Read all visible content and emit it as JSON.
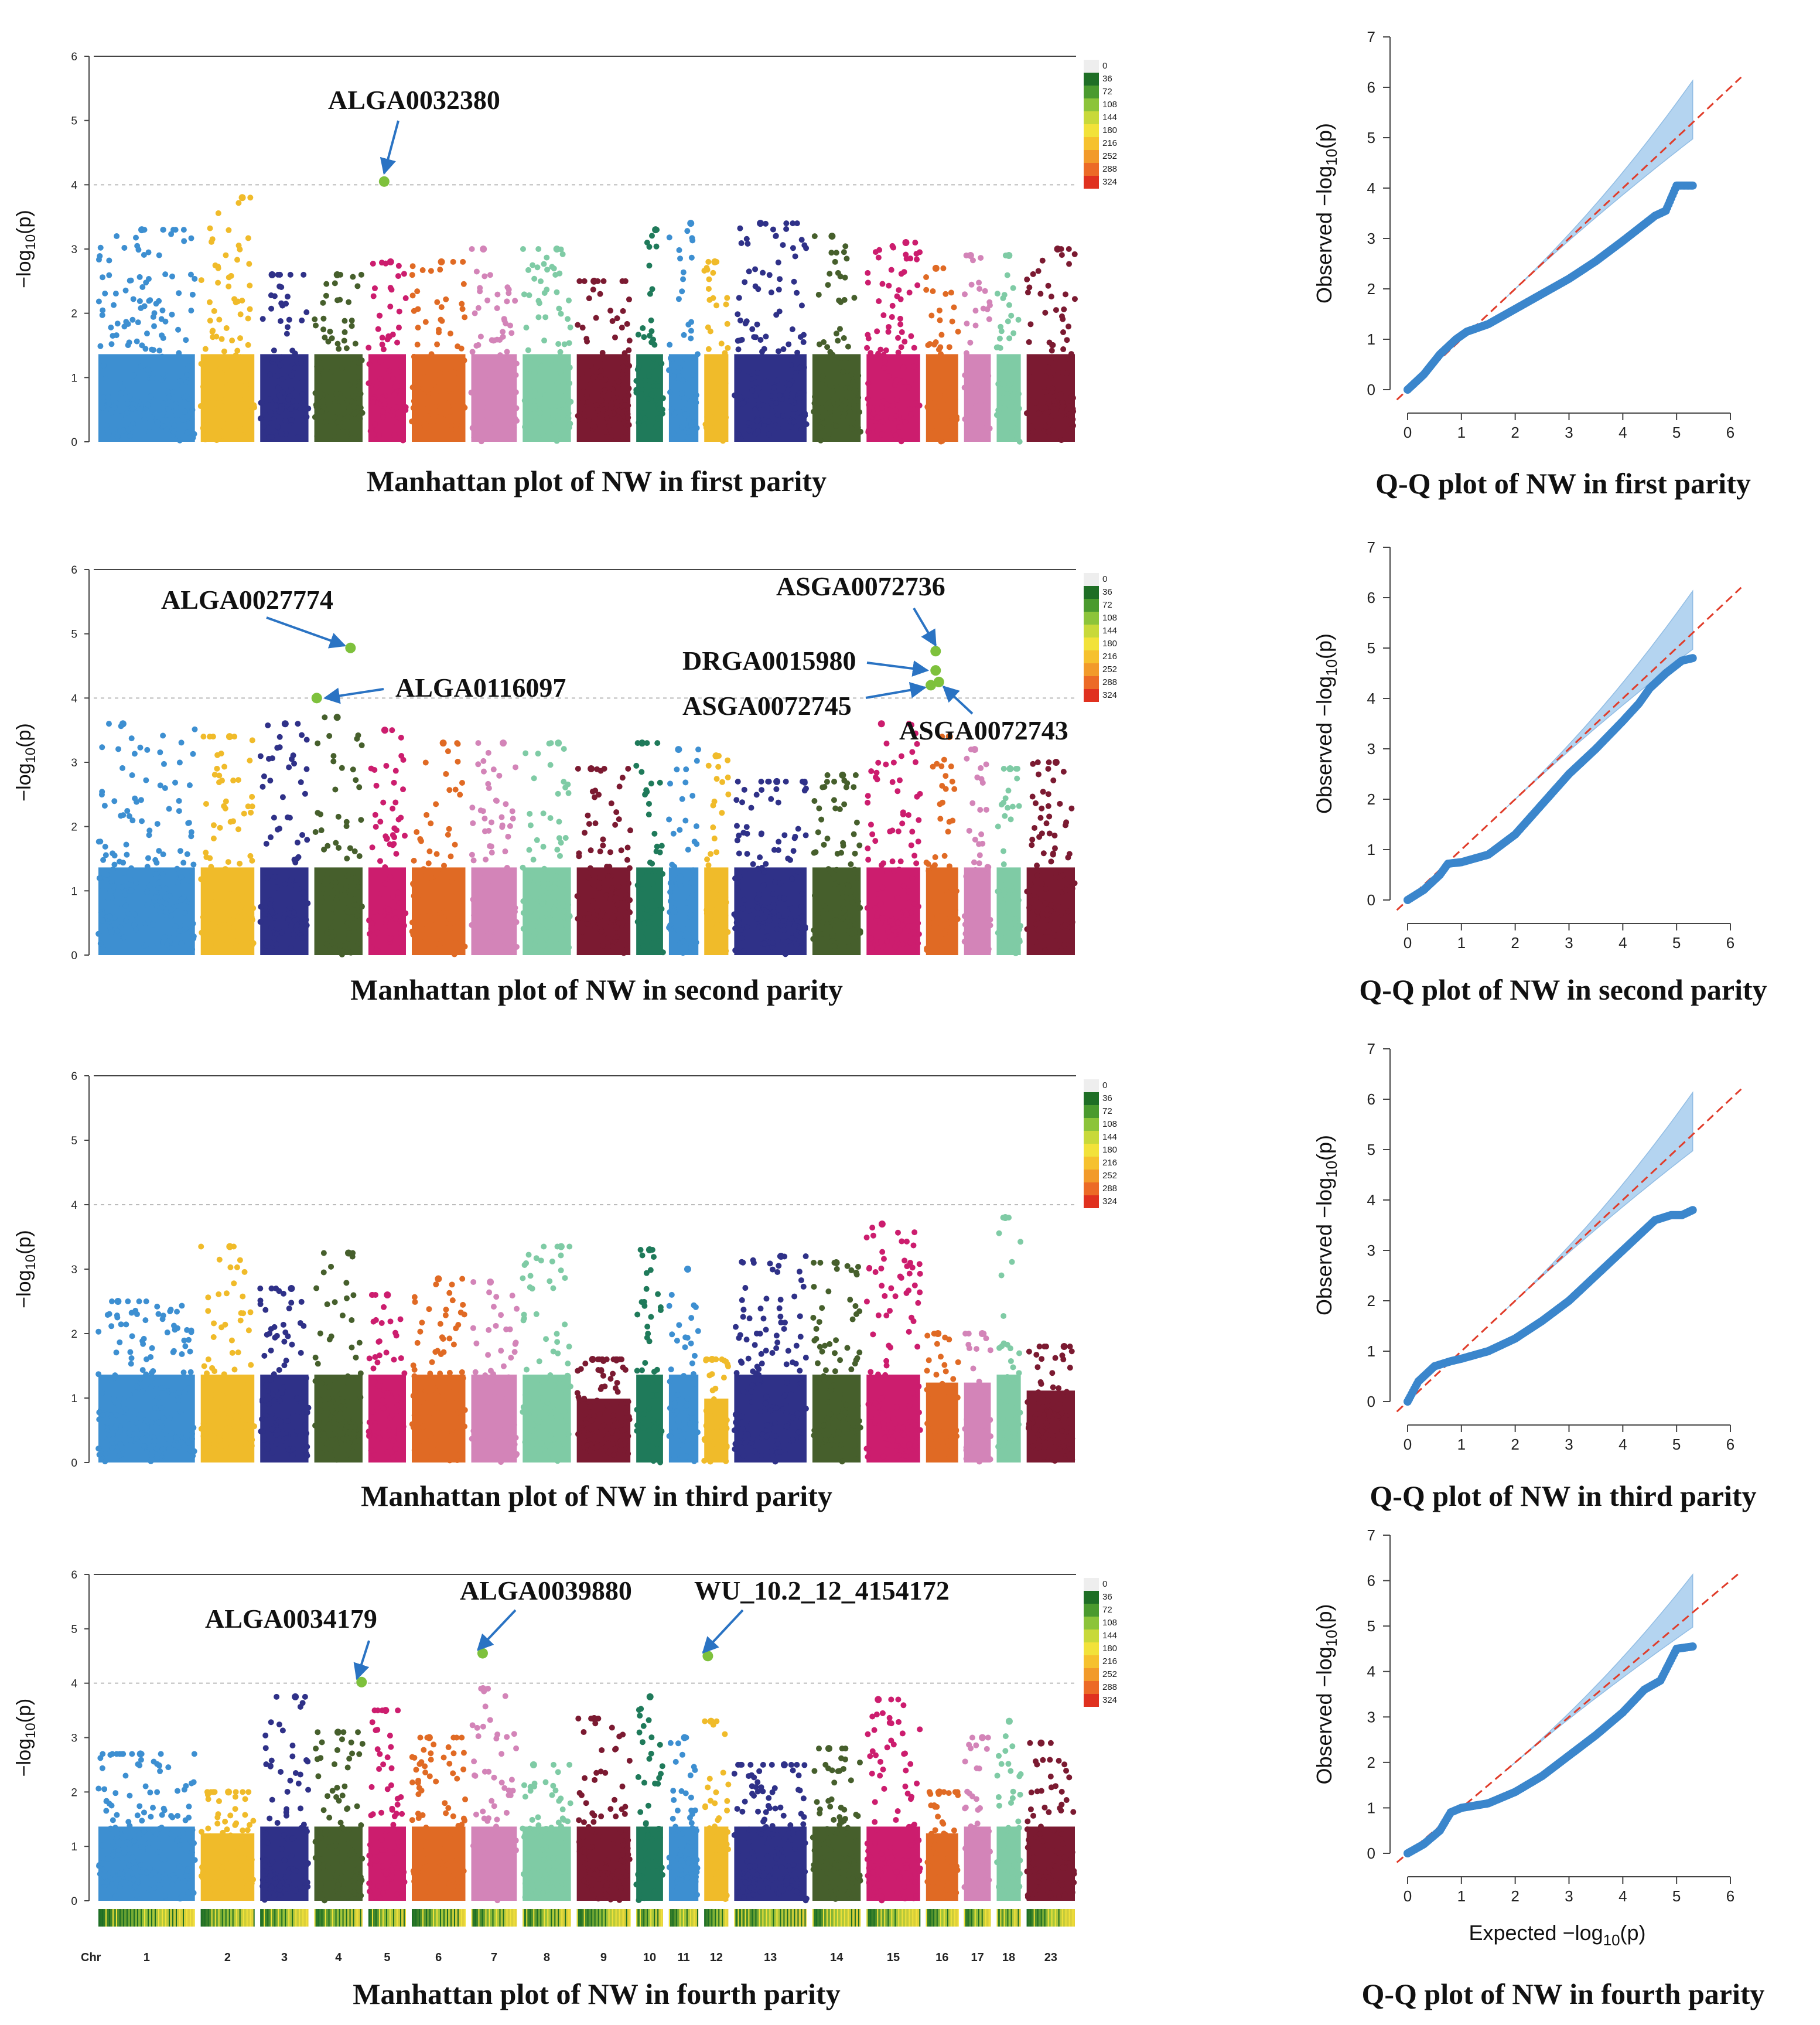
{
  "chart_data": [
    {
      "type": "scatter",
      "kind": "manhattan",
      "title": "Manhattan plot of NW in first parity",
      "ylabel": "-log10(p)",
      "ylim": [
        0,
        6
      ],
      "yticks": [
        0,
        1,
        2,
        3,
        4,
        5,
        6
      ],
      "threshold": 4,
      "chromosomes": [
        "1",
        "2",
        "3",
        "4",
        "5",
        "6",
        "7",
        "8",
        "9",
        "10",
        "11",
        "12",
        "13",
        "14",
        "15",
        "16",
        "17",
        "18",
        "23"
      ],
      "chromosome_widths": [
        3.6,
        2.0,
        1.8,
        1.8,
        1.4,
        2.0,
        1.7,
        1.8,
        2.0,
        1.0,
        1.1,
        0.9,
        2.7,
        1.8,
        2.0,
        1.2,
        1.0,
        0.9,
        1.8
      ],
      "chromosome_colors": [
        "#3d8fd1",
        "#f0bb2a",
        "#2f3188",
        "#465f2c",
        "#cc1d6e",
        "#e06a24",
        "#d384b8",
        "#7fcba5",
        "#7b1a31",
        "#1f7a5a",
        "#3d8fd1",
        "#f0bb2a",
        "#2f3188",
        "#465f2c",
        "#cc1d6e",
        "#e06a24",
        "#d384b8",
        "#7fcba5",
        "#7b1a31"
      ],
      "chromosome_max": [
        3.3,
        3.8,
        2.6,
        2.6,
        2.8,
        2.8,
        3.0,
        3.0,
        2.5,
        3.3,
        3.4,
        2.8,
        3.4,
        3.2,
        3.1,
        2.7,
        2.9,
        2.9,
        3.0
      ],
      "peaks": [
        {
          "snp": "ALGA0032380",
          "chr": "5",
          "pos": 0.42,
          "value": 4.05
        }
      ],
      "legend": {
        "title": "",
        "values": [
          "0",
          "36",
          "72",
          "108",
          "144",
          "180",
          "216",
          "252",
          "288",
          "324"
        ],
        "position": "right"
      }
    },
    {
      "type": "scatter",
      "kind": "manhattan",
      "title": "Manhattan plot of NW in second parity",
      "ylabel": "-log10(p)",
      "ylim": [
        0,
        6
      ],
      "yticks": [
        0,
        1,
        2,
        3,
        4,
        5,
        6
      ],
      "threshold": 4,
      "chromosomes": [
        "1",
        "2",
        "3",
        "4",
        "5",
        "6",
        "7",
        "8",
        "9",
        "10",
        "11",
        "12",
        "13",
        "14",
        "15",
        "16",
        "17",
        "18",
        "23"
      ],
      "chromosome_widths": [
        3.6,
        2.0,
        1.8,
        1.8,
        1.4,
        2.0,
        1.7,
        1.8,
        2.0,
        1.0,
        1.1,
        0.9,
        2.7,
        1.8,
        2.0,
        1.2,
        1.0,
        0.9,
        1.8
      ],
      "chromosome_colors": [
        "#3d8fd1",
        "#f0bb2a",
        "#2f3188",
        "#465f2c",
        "#cc1d6e",
        "#e06a24",
        "#d384b8",
        "#7fcba5",
        "#7b1a31",
        "#1f7a5a",
        "#3d8fd1",
        "#f0bb2a",
        "#2f3188",
        "#465f2c",
        "#cc1d6e",
        "#e06a24",
        "#d384b8",
        "#7fcba5",
        "#7b1a31"
      ],
      "chromosome_max": [
        3.6,
        3.4,
        3.6,
        3.7,
        3.5,
        3.3,
        3.3,
        3.3,
        2.9,
        3.3,
        3.2,
        3.1,
        2.7,
        2.8,
        3.6,
        3.4,
        3.2,
        2.9,
        3.0
      ],
      "peaks": [
        {
          "snp": "ALGA0027774",
          "chr": "4",
          "pos": 0.75,
          "value": 4.78
        },
        {
          "snp": "ALGA0116097",
          "chr": "4",
          "pos": 0.05,
          "value": 4.0
        },
        {
          "snp": "ASGA0072736",
          "chr": "16",
          "pos": 0.3,
          "value": 4.73
        },
        {
          "snp": "DRGA0015980",
          "chr": "16",
          "pos": 0.3,
          "value": 4.43
        },
        {
          "snp": "ASGA0072745",
          "chr": "16",
          "pos": 0.15,
          "value": 4.2
        },
        {
          "snp": "ASGA0072743",
          "chr": "16",
          "pos": 0.4,
          "value": 4.25
        }
      ],
      "legend": {
        "title": "",
        "values": [
          "0",
          "36",
          "72",
          "108",
          "144",
          "180",
          "216",
          "252",
          "288",
          "324"
        ],
        "position": "right"
      }
    },
    {
      "type": "scatter",
      "kind": "manhattan",
      "title": "Manhattan plot of NW in third parity",
      "ylabel": "-log10(p)",
      "ylim": [
        0,
        6
      ],
      "yticks": [
        0,
        1,
        2,
        3,
        4,
        5,
        6
      ],
      "threshold": 4,
      "chromosomes": [
        "1",
        "2",
        "3",
        "4",
        "5",
        "6",
        "7",
        "8",
        "9",
        "10",
        "11",
        "12",
        "13",
        "14",
        "15",
        "16",
        "17",
        "18",
        "23"
      ],
      "chromosome_widths": [
        3.6,
        2.0,
        1.8,
        1.8,
        1.4,
        2.0,
        1.7,
        1.8,
        2.0,
        1.0,
        1.1,
        0.9,
        2.7,
        1.8,
        2.0,
        1.2,
        1.0,
        0.9,
        1.8
      ],
      "chromosome_colors": [
        "#3d8fd1",
        "#f0bb2a",
        "#2f3188",
        "#465f2c",
        "#cc1d6e",
        "#e06a24",
        "#d384b8",
        "#7fcba5",
        "#7b1a31",
        "#1f7a5a",
        "#3d8fd1",
        "#f0bb2a",
        "#2f3188",
        "#465f2c",
        "#cc1d6e",
        "#e06a24",
        "#d384b8",
        "#7fcba5",
        "#7b1a31"
      ],
      "chromosome_max": [
        2.5,
        3.35,
        2.7,
        3.25,
        2.6,
        2.85,
        2.8,
        3.35,
        1.6,
        3.3,
        3.0,
        1.6,
        3.2,
        3.1,
        3.7,
        2.0,
        2.0,
        3.8,
        1.8
      ],
      "peaks": [],
      "legend": {
        "title": "",
        "values": [
          "0",
          "36",
          "72",
          "108",
          "144",
          "180",
          "216",
          "252",
          "288",
          "324"
        ],
        "position": "right"
      }
    },
    {
      "type": "scatter",
      "kind": "manhattan",
      "title": "Manhattan plot of NW in fourth parity",
      "xlabel": "Chr",
      "ylabel": "-log10(p)",
      "ylim": [
        0,
        6
      ],
      "yticks": [
        0,
        1,
        2,
        3,
        4,
        5,
        6
      ],
      "threshold": 4,
      "chromosomes": [
        "1",
        "2",
        "3",
        "4",
        "5",
        "6",
        "7",
        "8",
        "9",
        "10",
        "11",
        "12",
        "13",
        "14",
        "15",
        "16",
        "17",
        "18",
        "23"
      ],
      "chromosome_widths": [
        3.6,
        2.0,
        1.8,
        1.8,
        1.4,
        2.0,
        1.7,
        1.8,
        2.0,
        1.0,
        1.1,
        0.9,
        2.7,
        1.8,
        2.0,
        1.2,
        1.0,
        0.9,
        1.8
      ],
      "chromosome_colors": [
        "#3d8fd1",
        "#f0bb2a",
        "#2f3188",
        "#465f2c",
        "#cc1d6e",
        "#e06a24",
        "#d384b8",
        "#7fcba5",
        "#7b1a31",
        "#1f7a5a",
        "#3d8fd1",
        "#f0bb2a",
        "#2f3188",
        "#465f2c",
        "#cc1d6e",
        "#e06a24",
        "#d384b8",
        "#7fcba5",
        "#7b1a31"
      ],
      "chromosome_max": [
        2.7,
        2.0,
        3.75,
        3.1,
        3.5,
        3.0,
        3.9,
        2.5,
        3.35,
        3.75,
        3.0,
        3.3,
        2.5,
        2.8,
        3.7,
        2.0,
        3.0,
        3.3,
        2.9
      ],
      "peaks": [
        {
          "snp": "ALGA0034179",
          "chr": "4",
          "pos": 0.98,
          "value": 4.02
        },
        {
          "snp": "ALGA0039880",
          "chr": "7",
          "pos": 0.25,
          "value": 4.55
        },
        {
          "snp": "WU_10.2_12_4154172",
          "chr": "12",
          "pos": 0.15,
          "value": 4.5
        }
      ],
      "legend": {
        "title": "",
        "values": [
          "0",
          "36",
          "72",
          "108",
          "144",
          "180",
          "216",
          "252",
          "288",
          "324"
        ],
        "position": "right"
      }
    },
    {
      "type": "scatter",
      "kind": "qq",
      "title": "Q-Q plot of NW in first parity",
      "xlabel": "",
      "ylabel": "Observed -log10(p)",
      "xlim": [
        0,
        6
      ],
      "ylim": [
        0,
        7
      ],
      "xticks": [
        0,
        1,
        2,
        3,
        4,
        5,
        6
      ],
      "yticks": [
        0,
        1,
        2,
        3,
        4,
        5,
        6,
        7
      ],
      "points": [
        [
          0,
          0
        ],
        [
          0.3,
          0.3
        ],
        [
          0.6,
          0.7
        ],
        [
          0.9,
          1.0
        ],
        [
          1.1,
          1.15
        ],
        [
          1.5,
          1.3
        ],
        [
          2.0,
          1.6
        ],
        [
          2.5,
          1.9
        ],
        [
          3.0,
          2.2
        ],
        [
          3.5,
          2.55
        ],
        [
          4.0,
          2.95
        ],
        [
          4.3,
          3.2
        ],
        [
          4.6,
          3.45
        ],
        [
          4.8,
          3.55
        ],
        [
          5.0,
          4.05
        ],
        [
          5.3,
          4.05
        ]
      ]
    },
    {
      "type": "scatter",
      "kind": "qq",
      "title": "Q-Q plot of NW in second parity",
      "xlabel": "",
      "ylabel": "Observed -log10(p)",
      "xlim": [
        0,
        6
      ],
      "ylim": [
        0,
        7
      ],
      "xticks": [
        0,
        1,
        2,
        3,
        4,
        5,
        6
      ],
      "yticks": [
        0,
        1,
        2,
        3,
        4,
        5,
        6,
        7
      ],
      "points": [
        [
          0,
          0
        ],
        [
          0.3,
          0.2
        ],
        [
          0.6,
          0.5
        ],
        [
          0.75,
          0.72
        ],
        [
          1.0,
          0.75
        ],
        [
          1.5,
          0.9
        ],
        [
          2.0,
          1.3
        ],
        [
          2.5,
          1.9
        ],
        [
          3.0,
          2.5
        ],
        [
          3.5,
          3.0
        ],
        [
          4.0,
          3.55
        ],
        [
          4.3,
          3.9
        ],
        [
          4.5,
          4.2
        ],
        [
          4.8,
          4.5
        ],
        [
          5.1,
          4.75
        ],
        [
          5.3,
          4.8
        ]
      ]
    },
    {
      "type": "scatter",
      "kind": "qq",
      "title": "Q-Q plot of NW in third parity",
      "xlabel": "",
      "ylabel": "Observed -log10(p)",
      "xlim": [
        0,
        6
      ],
      "ylim": [
        0,
        7
      ],
      "xticks": [
        0,
        1,
        2,
        3,
        4,
        5,
        6
      ],
      "yticks": [
        0,
        1,
        2,
        3,
        4,
        5,
        6,
        7
      ],
      "points": [
        [
          0,
          0
        ],
        [
          0.2,
          0.4
        ],
        [
          0.5,
          0.7
        ],
        [
          0.8,
          0.8
        ],
        [
          1.0,
          0.85
        ],
        [
          1.5,
          1.0
        ],
        [
          2.0,
          1.25
        ],
        [
          2.5,
          1.6
        ],
        [
          3.0,
          2.0
        ],
        [
          3.5,
          2.5
        ],
        [
          4.0,
          3.0
        ],
        [
          4.3,
          3.3
        ],
        [
          4.6,
          3.6
        ],
        [
          4.9,
          3.7
        ],
        [
          5.1,
          3.7
        ],
        [
          5.3,
          3.8
        ]
      ]
    },
    {
      "type": "scatter",
      "kind": "qq",
      "title": "Q-Q plot of NW in fourth parity",
      "xlabel": "Expected -log10(p)",
      "ylabel": "Observed -log10(p)",
      "xlim": [
        0,
        6
      ],
      "ylim": [
        0,
        7
      ],
      "xticks": [
        0,
        1,
        2,
        3,
        4,
        5,
        6
      ],
      "yticks": [
        0,
        1,
        2,
        3,
        4,
        5,
        6,
        7
      ],
      "points": [
        [
          0,
          0
        ],
        [
          0.3,
          0.2
        ],
        [
          0.6,
          0.5
        ],
        [
          0.8,
          0.9
        ],
        [
          1.0,
          1.0
        ],
        [
          1.5,
          1.1
        ],
        [
          2.0,
          1.35
        ],
        [
          2.5,
          1.7
        ],
        [
          3.0,
          2.15
        ],
        [
          3.5,
          2.6
        ],
        [
          4.0,
          3.1
        ],
        [
          4.4,
          3.6
        ],
        [
          4.7,
          3.8
        ],
        [
          5.0,
          4.5
        ],
        [
          5.3,
          4.55
        ]
      ]
    }
  ],
  "figure": {
    "yaxis_label_prefix": "−log",
    "yaxis_label_sub": "10",
    "yaxis_label_suffix": "(p)",
    "qq_observed_word": "Observed",
    "qq_expected_word": "Expected",
    "chr_axis_label": "Chr"
  },
  "colors": {
    "qq_points": "#3b86cc",
    "qq_band": "#a8cdee",
    "qq_line": "#e03c2a",
    "peak": "#7ec13c",
    "arrow": "#2a73c3",
    "threshold": "#bbbbbb"
  }
}
